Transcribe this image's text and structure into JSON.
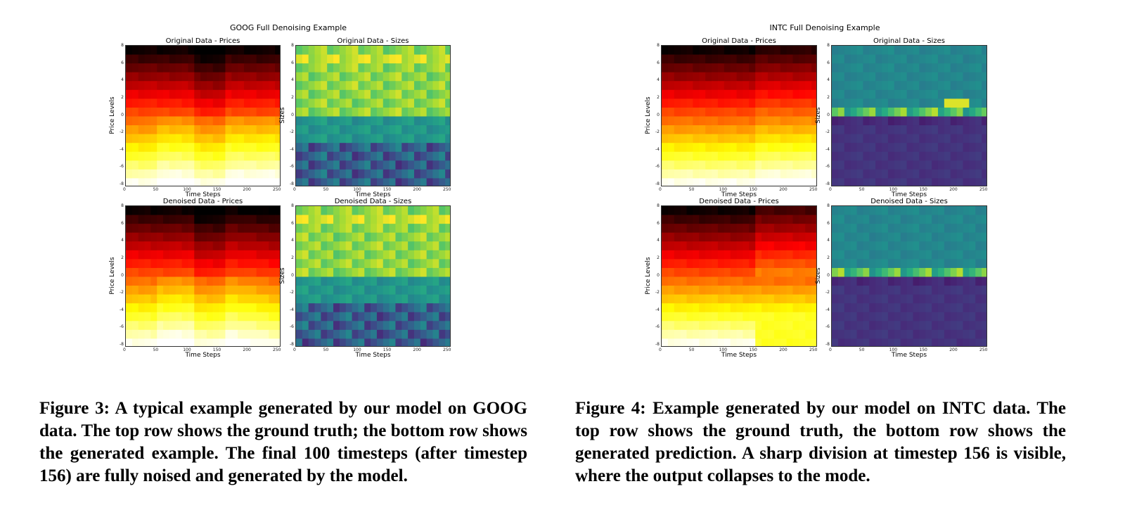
{
  "figures": [
    {
      "id": "goog",
      "title": "GOOG Full Denoising Example",
      "panels": [
        {
          "title": "Original Data - Prices",
          "ylabel": "Price Levels",
          "xlabel": "Time Steps",
          "kind": "prices",
          "variant": "goog_orig"
        },
        {
          "title": "Original Data - Sizes",
          "ylabel": "Sizes",
          "xlabel": "Time Steps",
          "kind": "sizes",
          "variant": "goog_orig"
        },
        {
          "title": "Denoised Data - Prices",
          "ylabel": "Price Levels",
          "xlabel": "Time Steps",
          "kind": "prices",
          "variant": "goog_den"
        },
        {
          "title": "Denoised Data - Sizes",
          "ylabel": "Sizes",
          "xlabel": "Time Steps",
          "kind": "sizes",
          "variant": "goog_den"
        }
      ],
      "caption": "Figure 3: A typical example generated by our model on GOOG data. The top row shows the ground truth; the bottom row shows the generated example. The final 100 timesteps (after timestep 156) are fully noised and generated by the model."
    },
    {
      "id": "intc",
      "title": "INTC Full Denoising Example",
      "panels": [
        {
          "title": "Original Data - Prices",
          "ylabel": "Price Levels",
          "xlabel": "Time Steps",
          "kind": "prices",
          "variant": "intc_orig"
        },
        {
          "title": "Original Data - Sizes",
          "ylabel": "Sizes",
          "xlabel": "Time Steps",
          "kind": "sizes",
          "variant": "intc_orig"
        },
        {
          "title": "Denoised Data - Prices",
          "ylabel": "Price Levels",
          "xlabel": "Time Steps",
          "kind": "prices",
          "variant": "intc_den"
        },
        {
          "title": "Denoised Data - Sizes",
          "ylabel": "Sizes",
          "xlabel": "Time Steps",
          "kind": "sizes",
          "variant": "intc_den"
        }
      ],
      "caption": "Figure 4: Example generated by our model on INTC data. The top row shows the ground truth, the bottom row shows the generated prediction. A sharp division at timestep 156 is visible, where the output collapses to the mode."
    }
  ],
  "x_ticks": [
    "0",
    "50",
    "100",
    "150",
    "200",
    "250"
  ],
  "y_ticks": [
    "8",
    "6",
    "4",
    "2",
    "0",
    "-2",
    "-4",
    "-6",
    "-8"
  ],
  "chart_data": [
    {
      "type": "heatmap",
      "title": "GOOG Full Denoising Example",
      "xlabel": "Time Steps",
      "ylabel": "Price Levels / Sizes",
      "xlim": [
        0,
        250
      ],
      "ylim": [
        -8,
        8
      ],
      "colormaps": {
        "prices": "hot",
        "sizes": "viridis"
      }
    },
    {
      "type": "heatmap",
      "title": "INTC Full Denoising Example",
      "xlabel": "Time Steps",
      "ylabel": "Price Levels / Sizes",
      "xlim": [
        0,
        250
      ],
      "ylim": [
        -8,
        8
      ],
      "colormaps": {
        "prices": "hot",
        "sizes": "viridis"
      }
    }
  ]
}
